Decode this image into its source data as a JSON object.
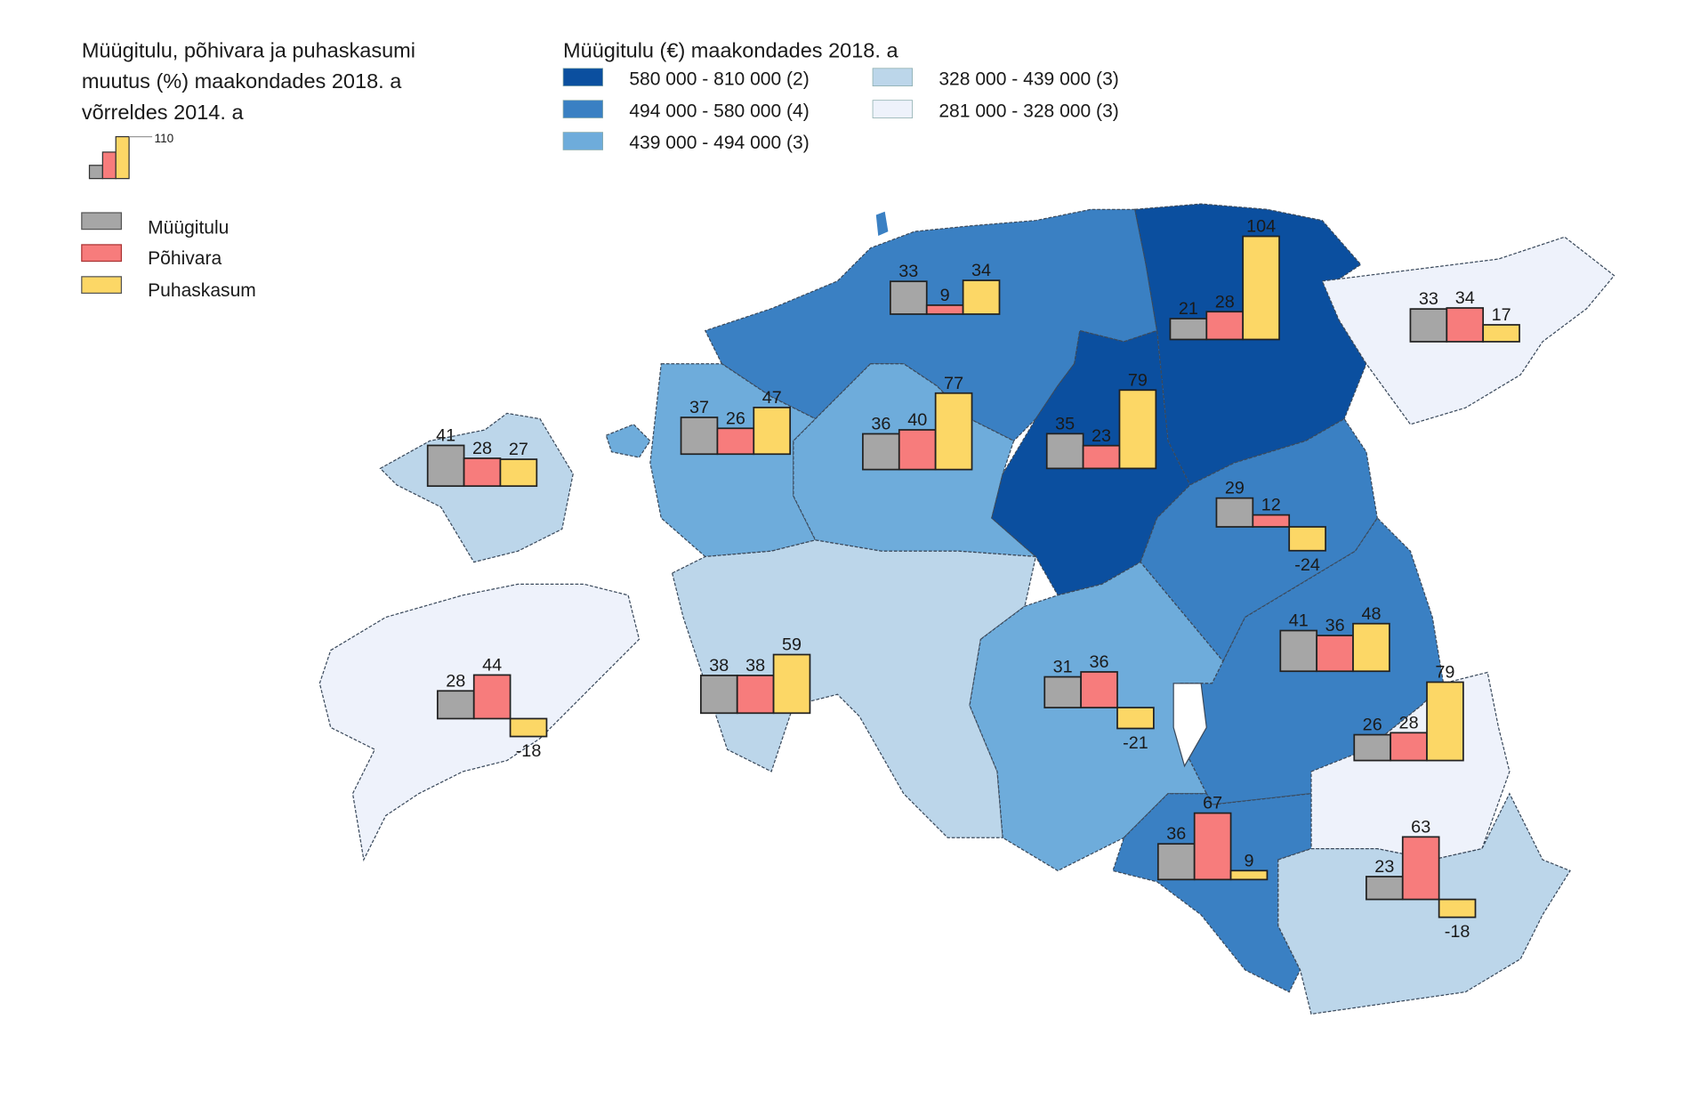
{
  "legend_bars": {
    "title_lines": [
      "Müügitulu, põhivara ja puhaskasumi",
      "muutus (%) maakondades 2018. a",
      "võrreldes 2014. a"
    ],
    "scale_value": "110",
    "items": [
      {
        "label": "Müügitulu",
        "color": "#a6a6a6"
      },
      {
        "label": "Põhivara",
        "color": "#f77c7c"
      },
      {
        "label": "Puhaskasum",
        "color": "#fcd766"
      }
    ]
  },
  "legend_choropleth": {
    "title": "Müügitulu (€) maakondades 2018. a",
    "classes": [
      {
        "label": "580 000 - 810 000",
        "count": "(2)",
        "color": "#0b4f9f"
      },
      {
        "label": "494 000 - 580 000",
        "count": "(4)",
        "color": "#3a80c3"
      },
      {
        "label": "439 000 - 494 000",
        "count": "(3)",
        "color": "#6eacdb"
      },
      {
        "label": "328 000 - 439 000",
        "count": "(3)",
        "color": "#bcd6ea"
      },
      {
        "label": "281 000 - 328 000",
        "count": "(3)",
        "color": "#eef2fb"
      }
    ]
  },
  "chart_data": {
    "type": "bar",
    "title": "Müügitulu, põhivara ja puhaskasumi muutus (%) maakondades 2018. a võrreldes 2014. a",
    "series_names": [
      "Müügitulu",
      "Põhivara",
      "Puhaskasum"
    ],
    "unit": "%",
    "counties": [
      {
        "id": "harju",
        "class": 1,
        "values": [
          33,
          9,
          34
        ]
      },
      {
        "id": "laane-viru",
        "class": 0,
        "values": [
          21,
          28,
          104
        ]
      },
      {
        "id": "ida-viru",
        "class": 4,
        "values": [
          33,
          34,
          17
        ]
      },
      {
        "id": "laane",
        "class": 2,
        "values": [
          37,
          26,
          47
        ]
      },
      {
        "id": "rapla",
        "class": 2,
        "values": [
          36,
          40,
          77
        ]
      },
      {
        "id": "jarva",
        "class": 0,
        "values": [
          35,
          23,
          79
        ]
      },
      {
        "id": "hiiu",
        "class": 3,
        "values": [
          41,
          28,
          27
        ]
      },
      {
        "id": "jogeva",
        "class": 1,
        "values": [
          29,
          12,
          -24
        ]
      },
      {
        "id": "saare",
        "class": 4,
        "values": [
          28,
          44,
          -18
        ]
      },
      {
        "id": "parnu",
        "class": 3,
        "values": [
          38,
          38,
          59
        ]
      },
      {
        "id": "viljandi",
        "class": 2,
        "values": [
          31,
          36,
          -21
        ]
      },
      {
        "id": "tartu",
        "class": 1,
        "values": [
          41,
          36,
          48
        ]
      },
      {
        "id": "polva",
        "class": 4,
        "values": [
          26,
          28,
          79
        ]
      },
      {
        "id": "valga",
        "class": 1,
        "values": [
          36,
          67,
          9
        ]
      },
      {
        "id": "voru",
        "class": 3,
        "values": [
          23,
          63,
          -18
        ]
      }
    ]
  }
}
